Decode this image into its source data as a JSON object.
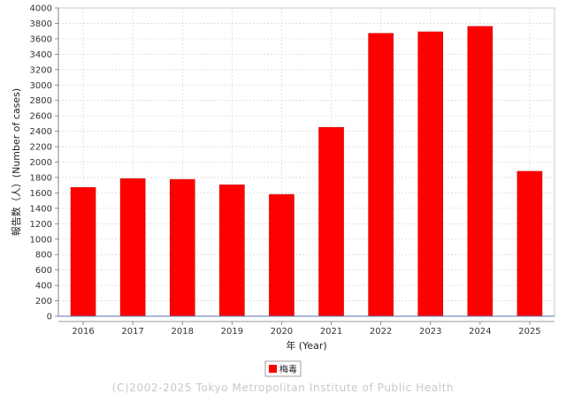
{
  "chart_data": {
    "type": "bar",
    "title": "",
    "xlabel": "年 (Year)",
    "ylabel": "報告数（人）(Number of cases)",
    "categories": [
      "2016",
      "2017",
      "2018",
      "2019",
      "2020",
      "2021",
      "2022",
      "2023",
      "2024",
      "2025"
    ],
    "series": [
      {
        "name": "梅毒",
        "color": "#ff0000",
        "values": [
          1670,
          1785,
          1775,
          1705,
          1580,
          2450,
          3670,
          3690,
          3760,
          1880
        ]
      }
    ],
    "ylim": [
      0,
      4000
    ],
    "y_tick_step": 200,
    "grid": true,
    "legend_position": "bottom-center"
  },
  "footer": {
    "copyright": "(C)2002-2025 Tokyo Metropolitan Institute of Public Health"
  }
}
